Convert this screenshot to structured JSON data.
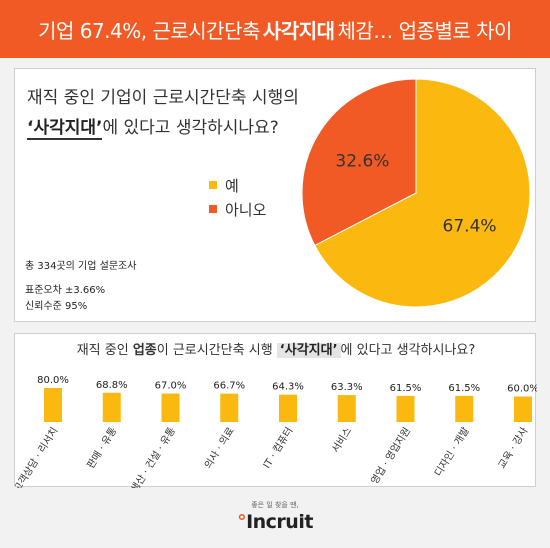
{
  "header": {
    "part1": "기업 67.4%, 근로시간단축",
    "emph": "사각지대",
    "part2": "체감… 업종별로 차이"
  },
  "survey1": {
    "line1": "재직 중인 기업이 근로시간단축 시행의",
    "highlight": "‘사각지대’",
    "line2_rest": "에 있다고 생각하시나요?",
    "note_total": "총 334곳의 기업 설문조사",
    "note_error": "표준오차 ±3.66%",
    "note_confidence": "신뢰수준 95%"
  },
  "survey2": {
    "q_pre": "재직 중인",
    "q_bold": "업종",
    "q_mid": "이 근로시간단축 시행",
    "q_highlight": "‘사각지대’",
    "q_post": "에 있다고 생각하시나요?"
  },
  "colors": {
    "header": "#f15a24",
    "yes": "#fbb80f",
    "no": "#f15a24",
    "bar": "#fbb80f"
  },
  "chart_data": [
    {
      "type": "pie",
      "series": [
        {
          "name": "예",
          "value": 67.4,
          "label": "67.4%",
          "color": "#fbb80f"
        },
        {
          "name": "아니오",
          "value": 32.6,
          "label": "32.6%",
          "color": "#f15a24"
        }
      ],
      "legend": "left"
    },
    {
      "type": "bar",
      "categories": [
        "고객상담 · 리서치",
        "판매 · 유통",
        "생산 · 건설 · 유통",
        "의사 · 의료",
        "IT · 컴퓨터",
        "서비스",
        "영업 · 영업지원",
        "디자인 · 개발",
        "교육 · 강사"
      ],
      "values": [
        80.0,
        68.8,
        67.0,
        66.7,
        64.3,
        63.3,
        61.5,
        61.5,
        60.0
      ],
      "labels": [
        "80.0%",
        "68.8%",
        "67.0%",
        "66.7%",
        "64.3%",
        "63.3%",
        "61.5%",
        "61.5%",
        "60.0%"
      ]
    }
  ],
  "footer": {
    "slogan": "좋은 일 찾을 땐,",
    "logo_mark": "°",
    "logo_text": "Incruit"
  }
}
